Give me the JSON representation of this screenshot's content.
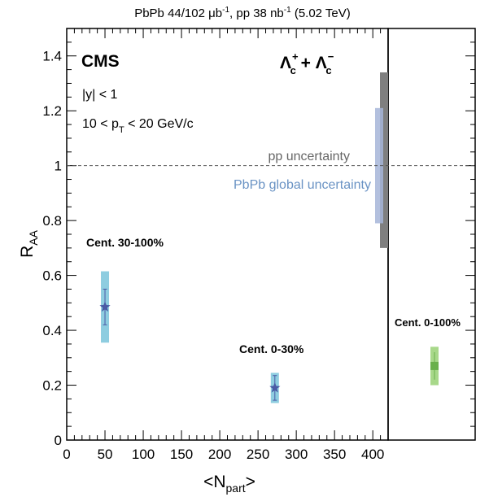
{
  "header": {
    "lumi_parts": [
      "PbPb 44/102 ",
      "μb",
      "-1",
      ", pp 38 nb",
      "-1",
      " (5.02 TeV)"
    ]
  },
  "chart_data": {
    "type": "scatter",
    "experiment": "CMS",
    "particle": {
      "base": "Λ",
      "sub": "c",
      "sup_plus": "+",
      "sup_minus": "−",
      "join": " + "
    },
    "selection_lines": {
      "rapidity": "|y| < 1",
      "pt_parts": [
        "10 < p",
        "T",
        " < 20 GeV/c"
      ]
    },
    "xlabel_parts": [
      "<N",
      "part",
      ">"
    ],
    "ylabel_parts": [
      "R",
      "AA"
    ],
    "xlim": [
      0,
      420
    ],
    "ylim": [
      0,
      1.5
    ],
    "x_ticks": [
      "0",
      "50",
      "100",
      "150",
      "200",
      "250",
      "300",
      "350",
      "400"
    ],
    "y_ticks": [
      "0",
      "0.2",
      "0.4",
      "0.6",
      "0.8",
      "1",
      "1.2",
      "1.4"
    ],
    "reference_line": {
      "y": 1,
      "style": "dashed"
    },
    "uncertainty_bands": [
      {
        "name": "pp uncertainty",
        "center": 1,
        "low": 0.7,
        "high": 1.34,
        "color": "#7f7f7f"
      },
      {
        "name": "PbPb global uncertainty",
        "center": 1,
        "low": 0.79,
        "high": 1.21,
        "color": "#a6b5d8"
      }
    ],
    "series": [
      {
        "label": "Cent. 30-100%",
        "marker": "star",
        "x": 50,
        "y": 0.485,
        "stat_low": 0.42,
        "stat_high": 0.55,
        "syst_low": 0.355,
        "syst_high": 0.615,
        "marker_color": "#4a5aa5",
        "syst_color": "#8ecde0"
      },
      {
        "label": "Cent. 0-30%",
        "marker": "star",
        "x": 272,
        "y": 0.19,
        "stat_low": 0.145,
        "stat_high": 0.235,
        "syst_low": 0.135,
        "syst_high": 0.245,
        "marker_color": "#4a5aa5",
        "syst_color": "#8ecde0"
      }
    ],
    "side_panel": {
      "label": "Cent. 0-100%",
      "marker": "square",
      "y": 0.27,
      "stat_low": 0.22,
      "stat_high": 0.32,
      "syst_low": 0.2,
      "syst_high": 0.34,
      "marker_color": "#6ab04c",
      "syst_color": "#a8d88a"
    },
    "grid": false,
    "colors": {
      "axis": "#000000",
      "reference_line": "#555555",
      "pp_text": "#666666",
      "pbpb_text": "#6a93c4"
    }
  }
}
